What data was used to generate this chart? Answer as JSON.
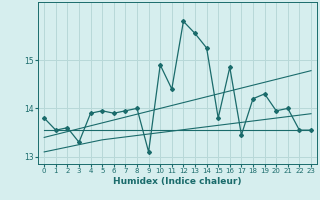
{
  "xlabel": "Humidex (Indice chaleur)",
  "bg_color": "#d6eeee",
  "grid_color": "#b8d8d8",
  "line_color": "#1a6b6b",
  "x_values": [
    0,
    1,
    2,
    3,
    4,
    5,
    6,
    7,
    8,
    9,
    10,
    11,
    12,
    13,
    14,
    15,
    16,
    17,
    18,
    19,
    20,
    21,
    22,
    23
  ],
  "y_main": [
    13.8,
    13.55,
    13.6,
    13.3,
    13.9,
    13.95,
    13.9,
    13.95,
    14.0,
    13.1,
    14.9,
    14.4,
    15.8,
    15.55,
    15.25,
    13.8,
    14.85,
    13.45,
    14.2,
    14.3,
    13.95,
    14.0,
    13.55,
    13.55
  ],
  "y_trend1": [
    13.55,
    13.55,
    13.55,
    13.55,
    13.55,
    13.55,
    13.55,
    13.55,
    13.55,
    13.55,
    13.55,
    13.55,
    13.55,
    13.55,
    13.55,
    13.55,
    13.55,
    13.55,
    13.55,
    13.55,
    13.55,
    13.55,
    13.55,
    13.55
  ],
  "y_trend2": [
    13.1,
    13.15,
    13.2,
    13.25,
    13.3,
    13.35,
    13.38,
    13.41,
    13.44,
    13.47,
    13.5,
    13.53,
    13.56,
    13.59,
    13.62,
    13.65,
    13.68,
    13.71,
    13.74,
    13.77,
    13.8,
    13.83,
    13.86,
    13.89
  ],
  "y_trend3": [
    13.4,
    13.46,
    13.52,
    13.58,
    13.64,
    13.7,
    13.76,
    13.82,
    13.88,
    13.94,
    14.0,
    14.06,
    14.12,
    14.18,
    14.24,
    14.3,
    14.36,
    14.42,
    14.48,
    14.54,
    14.6,
    14.66,
    14.72,
    14.78
  ],
  "ylim": [
    12.85,
    16.2
  ],
  "yticks": [
    13,
    14,
    15
  ],
  "xlim": [
    -0.5,
    23.5
  ]
}
